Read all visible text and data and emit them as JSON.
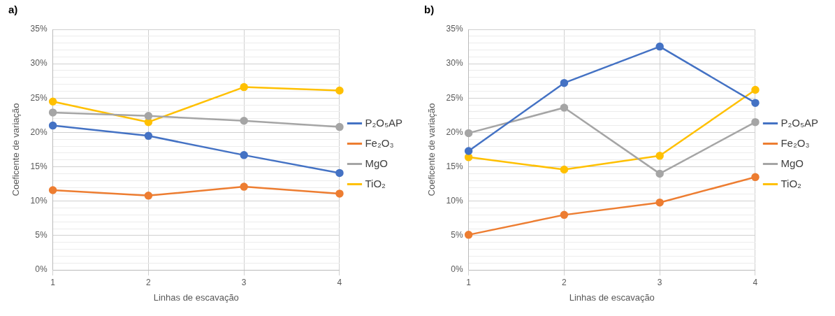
{
  "chart_data": [
    {
      "type": "line",
      "title": "a)",
      "xlabel": "Linhas de escavação",
      "ylabel": "Coeficente de variação",
      "categories": [
        "1",
        "2",
        "3",
        "4"
      ],
      "series": [
        {
          "name": "P₂O₅AP",
          "color": "#4472c4",
          "values": [
            21.0,
            19.5,
            16.7,
            14.1
          ]
        },
        {
          "name": "Fe₂O₃",
          "color": "#ed7d31",
          "values": [
            11.6,
            10.8,
            12.1,
            11.1
          ]
        },
        {
          "name": "MgO",
          "color": "#a5a5a5",
          "values": [
            22.9,
            22.4,
            21.7,
            20.8
          ]
        },
        {
          "name": "TiO₂",
          "color": "#ffc000",
          "values": [
            24.5,
            21.5,
            26.6,
            26.1
          ]
        }
      ],
      "ylim": [
        0,
        35
      ],
      "yticks": [
        {
          "value": 0,
          "label": "0%"
        },
        {
          "value": 1,
          "label": null
        },
        {
          "value": 2,
          "label": null
        },
        {
          "value": 3,
          "label": null
        },
        {
          "value": 4,
          "label": null
        },
        {
          "value": 5,
          "label": "5%"
        },
        {
          "value": 6,
          "label": null
        },
        {
          "value": 7,
          "label": null
        },
        {
          "value": 8,
          "label": null
        },
        {
          "value": 9,
          "label": null
        },
        {
          "value": 10,
          "label": "10%"
        },
        {
          "value": 11,
          "label": null
        },
        {
          "value": 12,
          "label": null
        },
        {
          "value": 13,
          "label": null
        },
        {
          "value": 14,
          "label": null
        },
        {
          "value": 15,
          "label": "15%"
        },
        {
          "value": 16,
          "label": null
        },
        {
          "value": 17,
          "label": null
        },
        {
          "value": 18,
          "label": null
        },
        {
          "value": 19,
          "label": null
        },
        {
          "value": 20,
          "label": "20%"
        },
        {
          "value": 21,
          "label": null
        },
        {
          "value": 22,
          "label": null
        },
        {
          "value": 23,
          "label": null
        },
        {
          "value": 24,
          "label": null
        },
        {
          "value": 25,
          "label": "25%"
        },
        {
          "value": 26,
          "label": null
        },
        {
          "value": 27,
          "label": null
        },
        {
          "value": 28,
          "label": null
        },
        {
          "value": 29,
          "label": null
        },
        {
          "value": 30,
          "label": "30%"
        },
        {
          "value": 31,
          "label": null
        },
        {
          "value": 32,
          "label": null
        },
        {
          "value": 33,
          "label": null
        },
        {
          "value": 34,
          "label": null
        },
        {
          "value": 35,
          "label": "35%"
        }
      ],
      "grid": true,
      "legend": "right",
      "marker": "circle",
      "line_style": "solid"
    },
    {
      "type": "line",
      "title": "b)",
      "xlabel": "Linhas de escavação",
      "ylabel": "Coeficente de variação",
      "categories": [
        "1",
        "2",
        "3",
        "4"
      ],
      "series": [
        {
          "name": "P₂O₅AP",
          "color": "#4472c4",
          "values": [
            17.3,
            27.2,
            32.5,
            24.3
          ]
        },
        {
          "name": "Fe₂O₃",
          "color": "#ed7d31",
          "values": [
            5.1,
            8.0,
            9.8,
            13.5
          ]
        },
        {
          "name": "MgO",
          "color": "#a5a5a5",
          "values": [
            19.9,
            23.6,
            14.0,
            21.5
          ]
        },
        {
          "name": "TiO₂",
          "color": "#ffc000",
          "values": [
            16.4,
            14.6,
            16.6,
            26.2
          ]
        }
      ],
      "ylim": [
        0,
        35
      ],
      "yticks": [
        {
          "value": 0,
          "label": "0%"
        },
        {
          "value": 1,
          "label": null
        },
        {
          "value": 2,
          "label": null
        },
        {
          "value": 3,
          "label": null
        },
        {
          "value": 4,
          "label": null
        },
        {
          "value": 5,
          "label": "5%"
        },
        {
          "value": 6,
          "label": null
        },
        {
          "value": 7,
          "label": null
        },
        {
          "value": 8,
          "label": null
        },
        {
          "value": 9,
          "label": null
        },
        {
          "value": 10,
          "label": "10%"
        },
        {
          "value": 11,
          "label": null
        },
        {
          "value": 12,
          "label": null
        },
        {
          "value": 13,
          "label": null
        },
        {
          "value": 14,
          "label": null
        },
        {
          "value": 15,
          "label": "15%"
        },
        {
          "value": 16,
          "label": null
        },
        {
          "value": 17,
          "label": null
        },
        {
          "value": 18,
          "label": null
        },
        {
          "value": 19,
          "label": null
        },
        {
          "value": 20,
          "label": "20%"
        },
        {
          "value": 21,
          "label": null
        },
        {
          "value": 22,
          "label": null
        },
        {
          "value": 23,
          "label": null
        },
        {
          "value": 24,
          "label": null
        },
        {
          "value": 25,
          "label": "25%"
        },
        {
          "value": 26,
          "label": null
        },
        {
          "value": 27,
          "label": null
        },
        {
          "value": 28,
          "label": null
        },
        {
          "value": 29,
          "label": null
        },
        {
          "value": 30,
          "label": "30%"
        },
        {
          "value": 31,
          "label": null
        },
        {
          "value": 32,
          "label": null
        },
        {
          "value": 33,
          "label": null
        },
        {
          "value": 34,
          "label": null
        },
        {
          "value": 35,
          "label": "35%"
        }
      ],
      "grid": true,
      "legend": "right",
      "marker": "circle",
      "line_style": "solid"
    }
  ]
}
